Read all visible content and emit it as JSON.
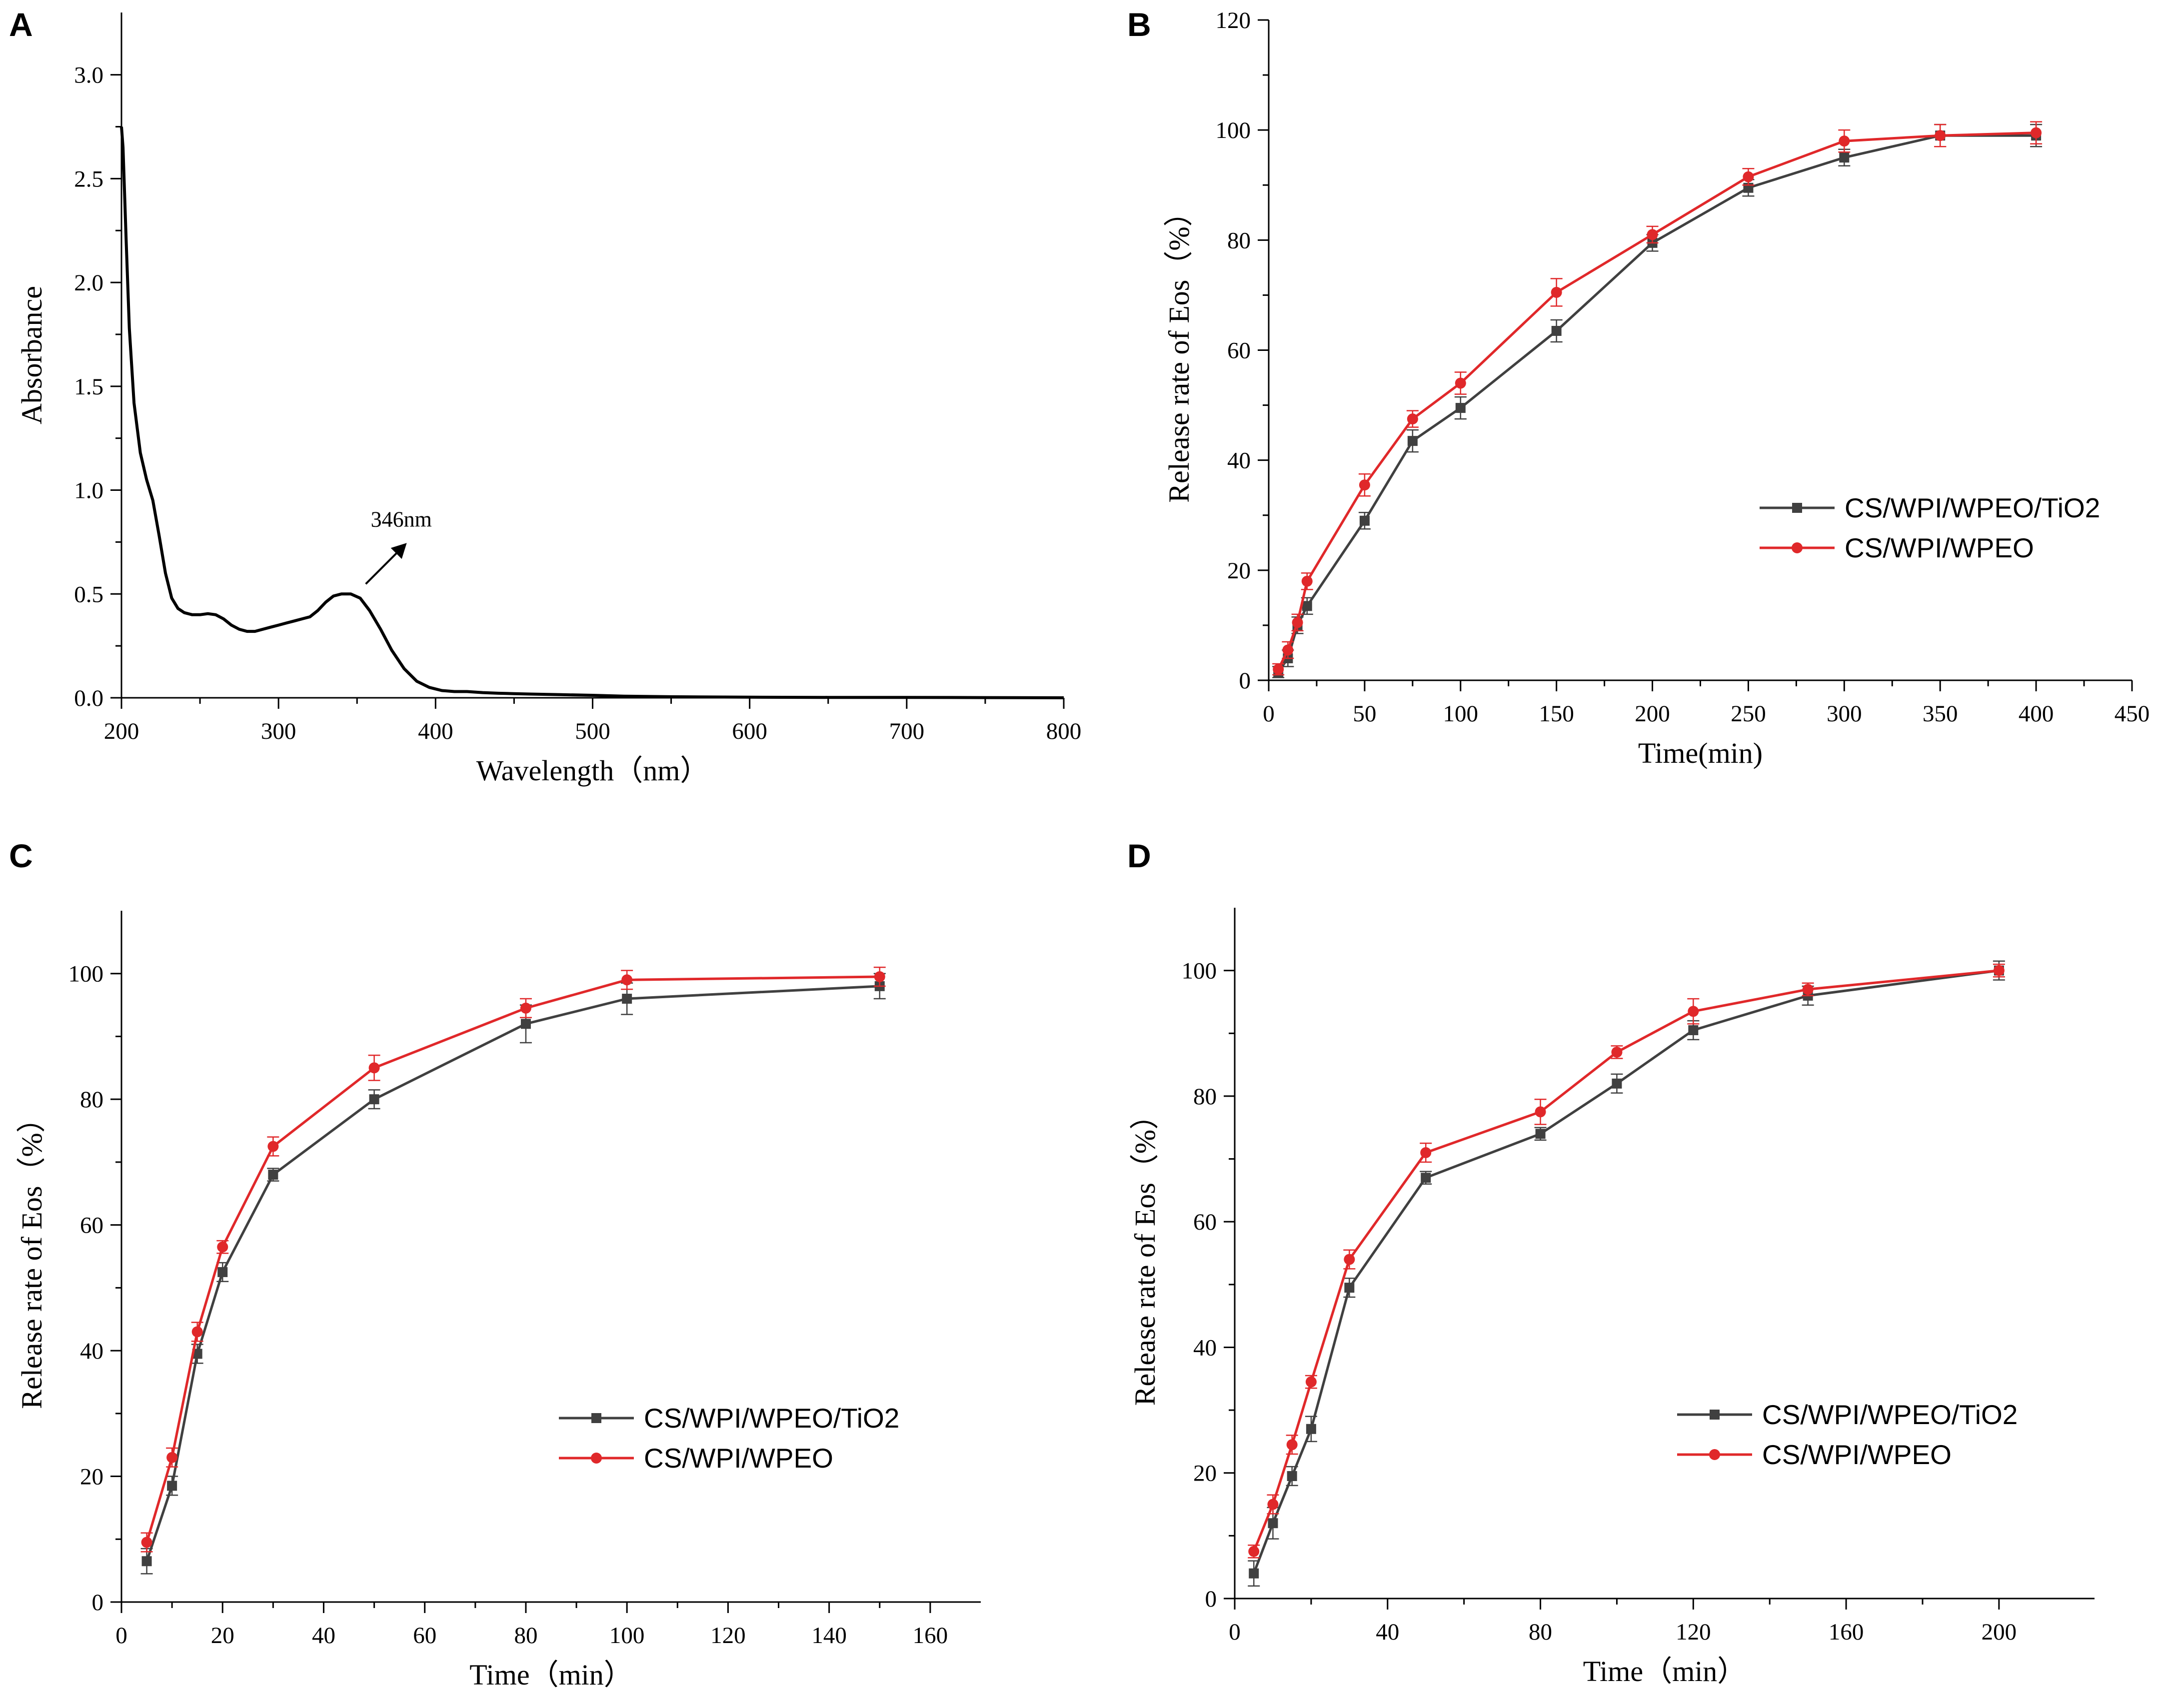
{
  "colors": {
    "series_dark": "#404040",
    "series_red": "#e0282a",
    "axis": "#000000"
  },
  "chart_data": [
    {
      "id": "A",
      "panel_label": "A",
      "type": "line",
      "title": "",
      "xlabel": "Wavelength（nm）",
      "ylabel": "Absorbance",
      "xlim": [
        200,
        800
      ],
      "ylim": [
        0,
        3.3
      ],
      "xticks": [
        200,
        300,
        400,
        500,
        600,
        700,
        800
      ],
      "yticks": [
        0.0,
        0.5,
        1.0,
        1.5,
        2.0,
        2.5,
        3.0
      ],
      "ytick_decimals": 1,
      "annotation": {
        "text": "346nm",
        "x": 346,
        "y": 0.5
      },
      "series": [
        {
          "name": "spectrum",
          "color": "#000000",
          "x": [
            200,
            201,
            203,
            205,
            208,
            212,
            216,
            220,
            224,
            228,
            232,
            236,
            240,
            245,
            250,
            255,
            260,
            265,
            270,
            275,
            280,
            285,
            290,
            295,
            300,
            305,
            310,
            315,
            320,
            325,
            330,
            335,
            340,
            346,
            352,
            358,
            365,
            372,
            380,
            388,
            396,
            404,
            412,
            420,
            430,
            440,
            450,
            460,
            480,
            500,
            520,
            550,
            600,
            650,
            700,
            750,
            800
          ],
          "y": [
            2.75,
            2.65,
            2.2,
            1.78,
            1.42,
            1.18,
            1.05,
            0.95,
            0.78,
            0.6,
            0.48,
            0.43,
            0.41,
            0.4,
            0.4,
            0.405,
            0.4,
            0.38,
            0.35,
            0.33,
            0.32,
            0.32,
            0.33,
            0.34,
            0.35,
            0.36,
            0.37,
            0.38,
            0.39,
            0.42,
            0.46,
            0.49,
            0.5,
            0.5,
            0.48,
            0.42,
            0.33,
            0.23,
            0.14,
            0.08,
            0.05,
            0.035,
            0.03,
            0.03,
            0.025,
            0.022,
            0.02,
            0.018,
            0.015,
            0.012,
            0.008,
            0.005,
            0.003,
            0.002,
            0.002,
            0.001,
            0.0
          ]
        }
      ]
    },
    {
      "id": "B",
      "panel_label": "B",
      "type": "line",
      "title": "",
      "xlabel": "Time(min)",
      "ylabel": "Release rate of Eos（%）",
      "xlim": [
        0,
        450
      ],
      "ylim": [
        0,
        120
      ],
      "xticks": [
        0,
        50,
        100,
        150,
        200,
        250,
        300,
        350,
        400,
        450
      ],
      "yticks": [
        0,
        20,
        40,
        60,
        80,
        100,
        120
      ],
      "ytick_decimals": 0,
      "legend_position": "center-right",
      "series": [
        {
          "name": "CS/WPI/WPEO/TiO2",
          "color": "#404040",
          "marker": "square",
          "x": [
            5,
            10,
            15,
            20,
            50,
            75,
            100,
            150,
            200,
            250,
            300,
            350,
            400
          ],
          "y": [
            1.5,
            4,
            10,
            13.5,
            29,
            43.5,
            49.5,
            63.5,
            79.5,
            89.5,
            95,
            99,
            99
          ],
          "err": [
            1,
            1.5,
            1.5,
            1.5,
            1.5,
            2,
            2,
            2,
            1.5,
            1.5,
            1.5,
            2,
            2
          ]
        },
        {
          "name": "CS/WPI/WPEO",
          "color": "#e0282a",
          "marker": "circle",
          "x": [
            5,
            10,
            15,
            20,
            50,
            75,
            100,
            150,
            200,
            250,
            300,
            350,
            400
          ],
          "y": [
            2,
            5.5,
            10.5,
            18,
            35.5,
            47.5,
            54,
            70.5,
            81,
            91.5,
            98,
            99,
            99.5
          ],
          "err": [
            1,
            1.5,
            1.5,
            1.5,
            2,
            1.5,
            2,
            2.5,
            1.5,
            1.5,
            2,
            2,
            2
          ]
        }
      ]
    },
    {
      "id": "C",
      "panel_label": "C",
      "type": "line",
      "title": "",
      "xlabel": "Time（min）",
      "ylabel": "Release rate of Eos（%）",
      "xlim": [
        0,
        170
      ],
      "ylim": [
        0,
        110
      ],
      "xticks": [
        0,
        20,
        40,
        60,
        80,
        100,
        120,
        140,
        160
      ],
      "yticks": [
        0,
        20,
        40,
        60,
        80,
        100
      ],
      "ytick_decimals": 0,
      "legend_position": "center-right",
      "series": [
        {
          "name": "CS/WPI/WPEO/TiO2",
          "color": "#404040",
          "marker": "square",
          "x": [
            5,
            10,
            15,
            20,
            30,
            50,
            80,
            100,
            150
          ],
          "y": [
            6.5,
            18.5,
            39.5,
            52.5,
            68,
            80,
            92,
            96,
            98
          ],
          "err": [
            2,
            1.5,
            1.5,
            1.5,
            1,
            1.5,
            3,
            2.5,
            2
          ]
        },
        {
          "name": "CS/WPI/WPEO",
          "color": "#e0282a",
          "marker": "circle",
          "x": [
            5,
            10,
            15,
            20,
            30,
            50,
            80,
            100,
            150
          ],
          "y": [
            9.5,
            23,
            43,
            56.5,
            72.5,
            85,
            94.5,
            99,
            99.5
          ],
          "err": [
            1.5,
            1.5,
            1.5,
            1,
            1.5,
            2,
            1.5,
            1.5,
            1.5
          ]
        }
      ]
    },
    {
      "id": "D",
      "panel_label": "D",
      "type": "line",
      "title": "",
      "xlabel": "Time（min）",
      "ylabel": "Release rate of Eos（%）",
      "xlim": [
        0,
        225
      ],
      "ylim": [
        0,
        110
      ],
      "xticks": [
        0,
        40,
        80,
        120,
        160,
        200
      ],
      "yticks": [
        0,
        20,
        40,
        60,
        80,
        100
      ],
      "ytick_decimals": 0,
      "legend_position": "center-right",
      "series": [
        {
          "name": "CS/WPI/WPEO/TiO2",
          "color": "#404040",
          "marker": "square",
          "x": [
            5,
            10,
            15,
            20,
            30,
            50,
            80,
            100,
            120,
            150,
            200
          ],
          "y": [
            4,
            12,
            19.5,
            27,
            49.5,
            67,
            74,
            82,
            90.5,
            96,
            100
          ],
          "err": [
            2,
            2.5,
            1.5,
            2,
            1.5,
            1,
            1,
            1.5,
            1.5,
            1.5,
            1.5
          ]
        },
        {
          "name": "CS/WPI/WPEO",
          "color": "#e0282a",
          "marker": "circle",
          "x": [
            5,
            10,
            15,
            20,
            30,
            50,
            80,
            100,
            120,
            150,
            200
          ],
          "y": [
            7.5,
            15,
            24.5,
            34.5,
            54,
            71,
            77.5,
            87,
            93.5,
            97,
            100
          ],
          "err": [
            1,
            1.5,
            1.5,
            1,
            1.5,
            1.5,
            2,
            1,
            2,
            1,
            1
          ]
        }
      ]
    }
  ]
}
